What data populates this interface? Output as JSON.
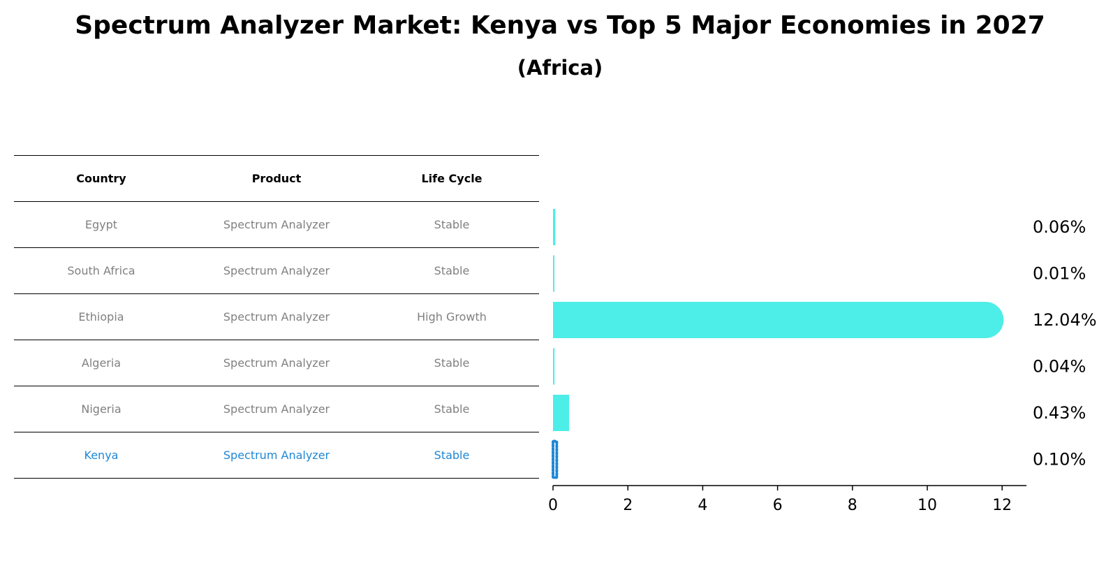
{
  "title": "Spectrum Analyzer Market: Kenya vs Top 5 Major Economies in 2027",
  "subtitle": "(Africa)",
  "table": {
    "headers": [
      "Country",
      "Product",
      "Life Cycle"
    ],
    "rows": [
      {
        "country": "Egypt",
        "product": "Spectrum Analyzer",
        "life_cycle": "Stable"
      },
      {
        "country": "South Africa",
        "product": "Spectrum Analyzer",
        "life_cycle": "Stable"
      },
      {
        "country": "Ethiopia",
        "product": "Spectrum Analyzer",
        "life_cycle": "High Growth"
      },
      {
        "country": "Algeria",
        "product": "Spectrum Analyzer",
        "life_cycle": "Stable"
      },
      {
        "country": "Nigeria",
        "product": "Spectrum Analyzer",
        "life_cycle": "Stable"
      },
      {
        "country": "Kenya",
        "product": "Spectrum Analyzer",
        "life_cycle": "Stable"
      }
    ]
  },
  "colors": {
    "bar": "#4dede8",
    "highlight": "#1f87d6",
    "muted_text": "#808080"
  },
  "chart_data": {
    "type": "bar",
    "orientation": "horizontal",
    "categories": [
      "Egypt",
      "South Africa",
      "Ethiopia",
      "Algeria",
      "Nigeria",
      "Kenya"
    ],
    "values": [
      0.06,
      0.01,
      12.04,
      0.04,
      0.43,
      0.1
    ],
    "value_labels": [
      "0.06%",
      "0.01%",
      "12.04%",
      "0.04%",
      "0.43%",
      "0.10%"
    ],
    "highlight": "Kenya",
    "xticks": [
      0,
      2,
      4,
      6,
      8,
      10,
      12
    ],
    "xlim": [
      0,
      12.65
    ],
    "grid": false
  }
}
